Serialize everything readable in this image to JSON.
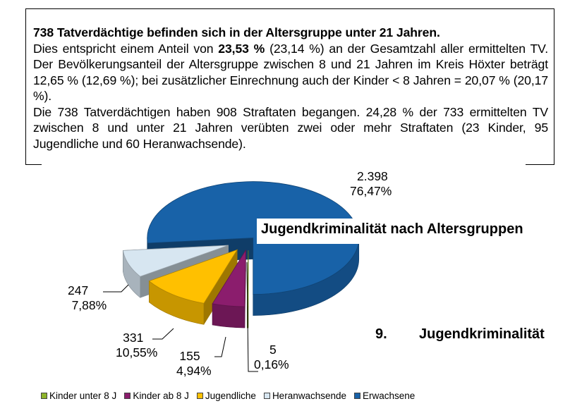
{
  "text_block": {
    "title": "738 Tatverdächtige befinden sich in der Altersgruppe unter 21 Jahren.",
    "p1_before": "Dies entspricht einem Anteil von ",
    "p1_bold": "23,53 %",
    "p1_after": " (23,14 %) an der Gesamtzahl aller ermittelten TV. Der Bevölkerungsanteil der Altersgruppe zwischen 8 und 21 Jahren im Kreis Höxter beträgt 12,65 % (12,69 %); bei zusätzlicher Einrechnung auch der Kinder < 8 Jahren = 20,07 % (20,17 %).",
    "p2": "Die 738 Tatverdächtigen haben 908 Straftaten begangen. 24,28 % der 733 ermittelten TV zwischen 8 und unter 21 Jahren verübten zwei oder mehr Straftaten (23 Kinder, 95 Jugendliche und 60 Heranwachsende)."
  },
  "section": {
    "number": "9.",
    "title": "Jugendkriminalität"
  },
  "chart_data": {
    "type": "pie",
    "title": "Jugendkriminalität nach Altersgruppen",
    "legend_position": "bottom",
    "slices": [
      {
        "name": "Kinder unter  8 J",
        "count": "5",
        "percent": "0,16%",
        "value": 5,
        "color": "#8db32a"
      },
      {
        "name": "Kinder ab 8 J",
        "count": "155",
        "percent": "4,94%",
        "value": 155,
        "color": "#8b1d6d"
      },
      {
        "name": "Jugendliche",
        "count": "331",
        "percent": "10,55%",
        "value": 331,
        "color": "#ffc000"
      },
      {
        "name": "Heranwachsende",
        "count": "247",
        "percent": "7,88%",
        "value": 247,
        "color": "#d7e6f1"
      },
      {
        "name": "Erwachsene",
        "count": "2.398",
        "percent": "76,47%",
        "value": 2398,
        "color": "#1862a8"
      }
    ]
  }
}
